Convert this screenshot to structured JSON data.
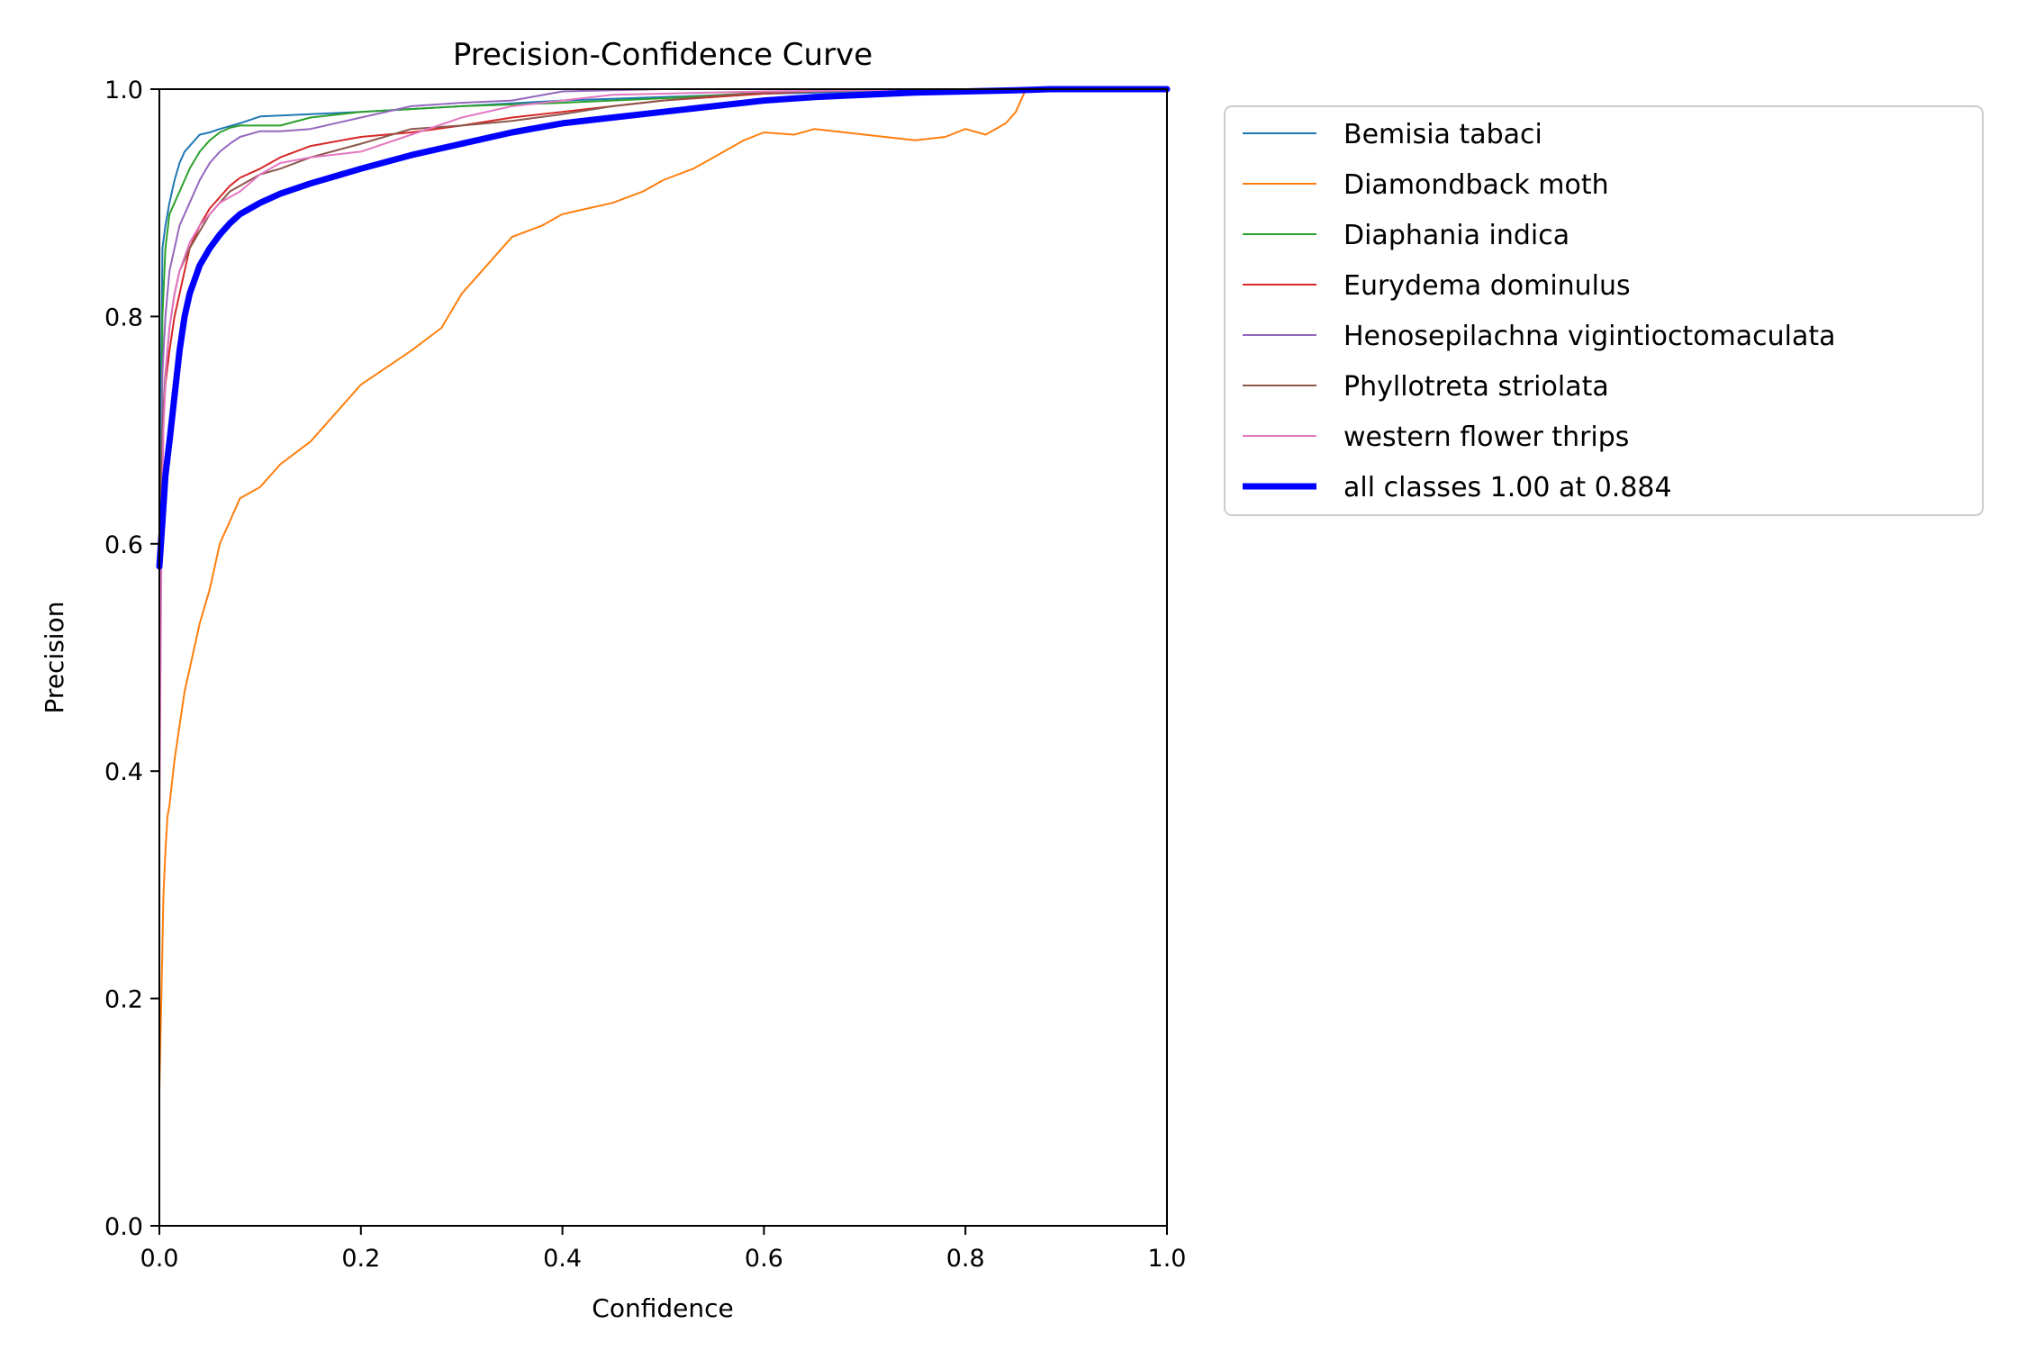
{
  "chart_data": {
    "type": "line",
    "title": "Precision-Confidence Curve",
    "xlabel": "Confidence",
    "ylabel": "Precision",
    "xlim": [
      0,
      1
    ],
    "ylim": [
      0,
      1
    ],
    "xticks": [
      "0.0",
      "0.2",
      "0.4",
      "0.6",
      "0.8",
      "1.0"
    ],
    "yticks": [
      "0.0",
      "0.2",
      "0.4",
      "0.6",
      "0.8",
      "1.0"
    ],
    "grid": false,
    "legend_position": "outside-upper-right",
    "series": [
      {
        "name": "Bemisia tabaci",
        "color": "#1f77b4",
        "width": 2,
        "x": [
          0.0,
          0.003,
          0.006,
          0.01,
          0.015,
          0.02,
          0.025,
          0.03,
          0.04,
          0.05,
          0.06,
          0.08,
          0.1,
          0.15,
          0.2,
          0.3,
          0.4,
          0.5,
          0.6,
          0.7,
          0.8,
          1.0
        ],
        "y": [
          0.6,
          0.86,
          0.88,
          0.9,
          0.92,
          0.935,
          0.945,
          0.95,
          0.96,
          0.962,
          0.965,
          0.97,
          0.976,
          0.978,
          0.98,
          0.985,
          0.99,
          0.993,
          0.996,
          0.998,
          1.0,
          1.0
        ]
      },
      {
        "name": "Diamondback moth",
        "color": "#ff7f0e",
        "width": 2,
        "x": [
          0.0,
          0.002,
          0.004,
          0.006,
          0.008,
          0.01,
          0.015,
          0.02,
          0.025,
          0.03,
          0.035,
          0.04,
          0.05,
          0.06,
          0.07,
          0.08,
          0.1,
          0.12,
          0.15,
          0.18,
          0.2,
          0.25,
          0.28,
          0.3,
          0.32,
          0.35,
          0.38,
          0.4,
          0.45,
          0.48,
          0.5,
          0.53,
          0.55,
          0.58,
          0.6,
          0.63,
          0.65,
          0.7,
          0.75,
          0.78,
          0.8,
          0.82,
          0.84,
          0.85,
          0.86,
          0.9,
          1.0
        ],
        "y": [
          0.12,
          0.2,
          0.29,
          0.33,
          0.36,
          0.37,
          0.41,
          0.44,
          0.47,
          0.49,
          0.51,
          0.53,
          0.56,
          0.6,
          0.62,
          0.64,
          0.65,
          0.67,
          0.69,
          0.72,
          0.74,
          0.77,
          0.79,
          0.82,
          0.84,
          0.87,
          0.88,
          0.89,
          0.9,
          0.91,
          0.92,
          0.93,
          0.94,
          0.955,
          0.962,
          0.96,
          0.965,
          0.96,
          0.955,
          0.958,
          0.965,
          0.96,
          0.97,
          0.98,
          1.0,
          1.0,
          1.0
        ]
      },
      {
        "name": "Diaphania indica",
        "color": "#2ca02c",
        "width": 2,
        "x": [
          0.0,
          0.003,
          0.006,
          0.01,
          0.015,
          0.02,
          0.025,
          0.03,
          0.04,
          0.05,
          0.06,
          0.07,
          0.08,
          0.1,
          0.12,
          0.15,
          0.2,
          0.3,
          0.4,
          0.5,
          0.6,
          0.7,
          1.0
        ],
        "y": [
          0.37,
          0.8,
          0.86,
          0.89,
          0.9,
          0.91,
          0.92,
          0.93,
          0.945,
          0.955,
          0.962,
          0.966,
          0.968,
          0.968,
          0.968,
          0.975,
          0.98,
          0.985,
          0.988,
          0.992,
          0.997,
          1.0,
          1.0
        ]
      },
      {
        "name": "Eurydema dominulus",
        "color": "#d62728",
        "width": 2,
        "x": [
          0.0,
          0.003,
          0.006,
          0.01,
          0.015,
          0.02,
          0.025,
          0.03,
          0.04,
          0.05,
          0.06,
          0.07,
          0.08,
          0.1,
          0.12,
          0.15,
          0.2,
          0.25,
          0.3,
          0.35,
          0.4,
          0.45,
          0.5,
          0.55,
          0.6,
          0.65,
          0.7,
          0.75,
          0.8,
          1.0
        ],
        "y": [
          0.6,
          0.7,
          0.74,
          0.77,
          0.8,
          0.82,
          0.84,
          0.86,
          0.88,
          0.895,
          0.905,
          0.915,
          0.922,
          0.93,
          0.94,
          0.95,
          0.958,
          0.962,
          0.968,
          0.975,
          0.98,
          0.985,
          0.99,
          0.993,
          0.996,
          0.998,
          0.999,
          1.0,
          1.0,
          1.0
        ]
      },
      {
        "name": "Henosepilachna vigintioctomaculata",
        "color": "#9467bd",
        "width": 2,
        "x": [
          0.0,
          0.003,
          0.006,
          0.01,
          0.015,
          0.02,
          0.025,
          0.03,
          0.04,
          0.05,
          0.06,
          0.07,
          0.08,
          0.1,
          0.12,
          0.15,
          0.2,
          0.25,
          0.3,
          0.35,
          0.4,
          0.5,
          0.6,
          1.0
        ],
        "y": [
          0.45,
          0.75,
          0.8,
          0.84,
          0.86,
          0.88,
          0.89,
          0.9,
          0.92,
          0.935,
          0.945,
          0.952,
          0.958,
          0.963,
          0.963,
          0.965,
          0.975,
          0.985,
          0.988,
          0.99,
          0.998,
          1.0,
          1.0,
          1.0
        ]
      },
      {
        "name": "Phyllotreta striolata",
        "color": "#8c564b",
        "width": 2,
        "x": [
          0.0,
          0.003,
          0.006,
          0.01,
          0.015,
          0.02,
          0.025,
          0.03,
          0.04,
          0.05,
          0.06,
          0.07,
          0.08,
          0.1,
          0.12,
          0.15,
          0.2,
          0.25,
          0.3,
          0.35,
          0.4,
          0.45,
          0.5,
          0.55,
          0.6,
          0.7,
          0.8,
          1.0
        ],
        "y": [
          0.6,
          0.7,
          0.75,
          0.79,
          0.82,
          0.84,
          0.85,
          0.86,
          0.875,
          0.89,
          0.9,
          0.91,
          0.915,
          0.925,
          0.93,
          0.94,
          0.952,
          0.965,
          0.968,
          0.972,
          0.978,
          0.985,
          0.99,
          0.994,
          0.997,
          0.999,
          1.0,
          1.0
        ]
      },
      {
        "name": "western flower thrips",
        "color": "#e377c2",
        "width": 2,
        "x": [
          0.0,
          0.002,
          0.004,
          0.007,
          0.01,
          0.015,
          0.02,
          0.03,
          0.04,
          0.05,
          0.06,
          0.07,
          0.08,
          0.1,
          0.12,
          0.15,
          0.2,
          0.25,
          0.3,
          0.35,
          0.4,
          0.45,
          0.5,
          0.6,
          0.7,
          0.8,
          1.0
        ],
        "y": [
          0.35,
          0.58,
          0.7,
          0.76,
          0.79,
          0.82,
          0.84,
          0.865,
          0.88,
          0.89,
          0.9,
          0.905,
          0.91,
          0.925,
          0.935,
          0.94,
          0.945,
          0.96,
          0.975,
          0.985,
          0.99,
          0.995,
          0.996,
          0.998,
          0.999,
          1.0,
          1.0
        ]
      },
      {
        "name": "all classes 1.00 at 0.884",
        "color": "#0000ff",
        "width": 7,
        "x": [
          0.0,
          0.003,
          0.006,
          0.01,
          0.015,
          0.02,
          0.025,
          0.03,
          0.04,
          0.05,
          0.06,
          0.07,
          0.08,
          0.1,
          0.12,
          0.15,
          0.2,
          0.25,
          0.3,
          0.35,
          0.4,
          0.45,
          0.5,
          0.55,
          0.6,
          0.65,
          0.7,
          0.75,
          0.8,
          0.85,
          0.884,
          1.0
        ],
        "y": [
          0.58,
          0.62,
          0.66,
          0.69,
          0.73,
          0.77,
          0.8,
          0.82,
          0.845,
          0.86,
          0.872,
          0.882,
          0.89,
          0.9,
          0.908,
          0.917,
          0.93,
          0.942,
          0.952,
          0.962,
          0.97,
          0.975,
          0.98,
          0.985,
          0.99,
          0.993,
          0.995,
          0.997,
          0.998,
          0.999,
          1.0,
          1.0
        ]
      }
    ]
  }
}
